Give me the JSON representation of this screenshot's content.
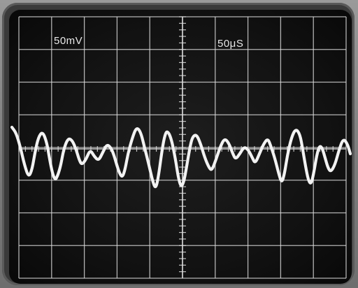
{
  "oscilloscope": {
    "volts_per_div": "50mV",
    "time_per_div": "50μS"
  }
}
